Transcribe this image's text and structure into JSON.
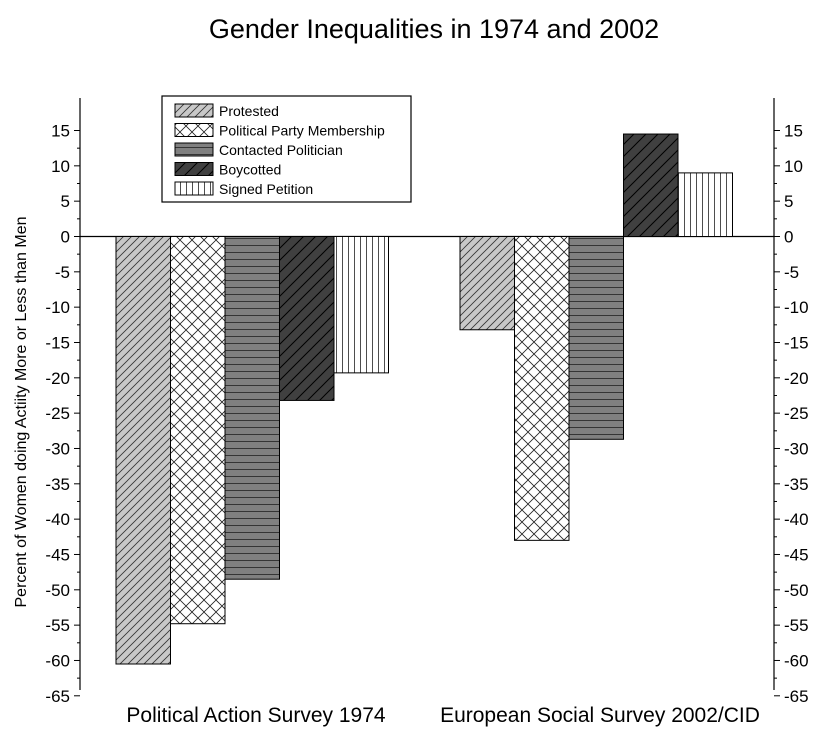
{
  "chart_data": {
    "type": "bar",
    "title": "Gender Inequalities in 1974 and 2002",
    "xlabel": "",
    "ylabel": "Percent of Women doing Actiity More or Less than Men",
    "ylim": [
      -65,
      15
    ],
    "yticks": [
      15,
      10,
      5,
      0,
      -5,
      -10,
      -15,
      -20,
      -25,
      -30,
      -35,
      -40,
      -45,
      -50,
      -55,
      -60,
      -65
    ],
    "categories": [
      "Political Action Survey 1974",
      "European Social Survey 2002/CID"
    ],
    "legend_position": "top-left",
    "grid": false,
    "series": [
      {
        "name": "Protested",
        "values": [
          -60.5,
          -13.2
        ],
        "pattern": "diag-light",
        "color": "#c8c8c8"
      },
      {
        "name": "Political Party Membership",
        "values": [
          -54.8,
          -43.0
        ],
        "pattern": "crosshatch",
        "color": "#ffffff"
      },
      {
        "name": "Contacted Politician",
        "values": [
          -48.5,
          -28.7
        ],
        "pattern": "horizontal",
        "color": "#808080"
      },
      {
        "name": "Boycotted",
        "values": [
          -23.2,
          14.5
        ],
        "pattern": "diag-dark",
        "color": "#404040"
      },
      {
        "name": "Signed Petition",
        "values": [
          -19.3,
          9.0
        ],
        "pattern": "vertical",
        "color": "#ffffff"
      }
    ]
  }
}
